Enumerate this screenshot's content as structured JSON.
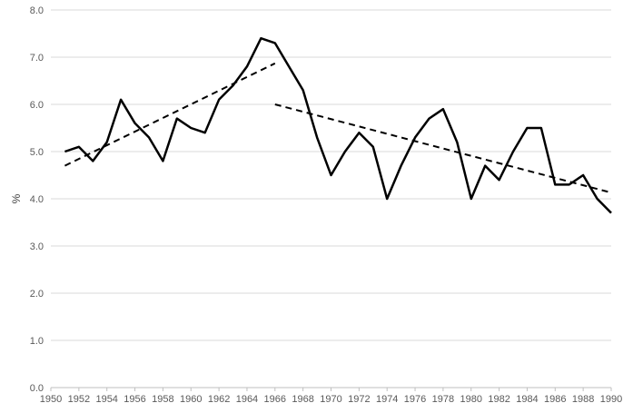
{
  "chart_data": {
    "type": "line",
    "title": "",
    "xlabel": "",
    "ylabel": "%",
    "xlim": [
      1950,
      1990
    ],
    "ylim": [
      0,
      8
    ],
    "grid": "horizontal",
    "legend": "none",
    "x_ticks": [
      "1950",
      "1952",
      "1954",
      "1956",
      "1958",
      "1960",
      "1962",
      "1964",
      "1966",
      "1968",
      "1970",
      "1972",
      "1974",
      "1976",
      "1978",
      "1980",
      "1982",
      "1984",
      "1986",
      "1988",
      "1990"
    ],
    "y_ticks": [
      "0.0",
      "1.0",
      "2.0",
      "3.0",
      "4.0",
      "5.0",
      "6.0",
      "7.0",
      "8.0"
    ],
    "series": [
      {
        "style": "solid",
        "color": "#000000",
        "x": [
          1951,
          1952,
          1953,
          1954,
          1955,
          1956,
          1957,
          1958,
          1959,
          1960,
          1961,
          1962,
          1963,
          1964,
          1965,
          1966,
          1967,
          1968,
          1969,
          1970,
          1971,
          1972,
          1973,
          1974,
          1975,
          1976,
          1977,
          1978,
          1979,
          1980,
          1981,
          1982,
          1983,
          1984,
          1985,
          1986,
          1987,
          1988,
          1989,
          1990
        ],
        "y": [
          5.0,
          5.1,
          4.8,
          5.2,
          6.1,
          5.6,
          5.3,
          4.8,
          5.7,
          5.5,
          5.4,
          6.1,
          6.4,
          6.8,
          7.4,
          7.3,
          6.8,
          6.3,
          5.3,
          4.5,
          5.0,
          5.4,
          5.1,
          4.0,
          4.7,
          5.3,
          5.7,
          5.9,
          5.2,
          4.0,
          4.7,
          4.4,
          5.0,
          5.5,
          5.5,
          4.3,
          4.3,
          4.5,
          4.0,
          3.7
        ]
      },
      {
        "style": "dashed",
        "color": "#000000",
        "x": [
          1951,
          1966
        ],
        "y": [
          4.7,
          6.87
        ]
      },
      {
        "style": "dashed",
        "color": "#000000",
        "x": [
          1966,
          1990
        ],
        "y": [
          6.0,
          4.13
        ]
      }
    ]
  }
}
